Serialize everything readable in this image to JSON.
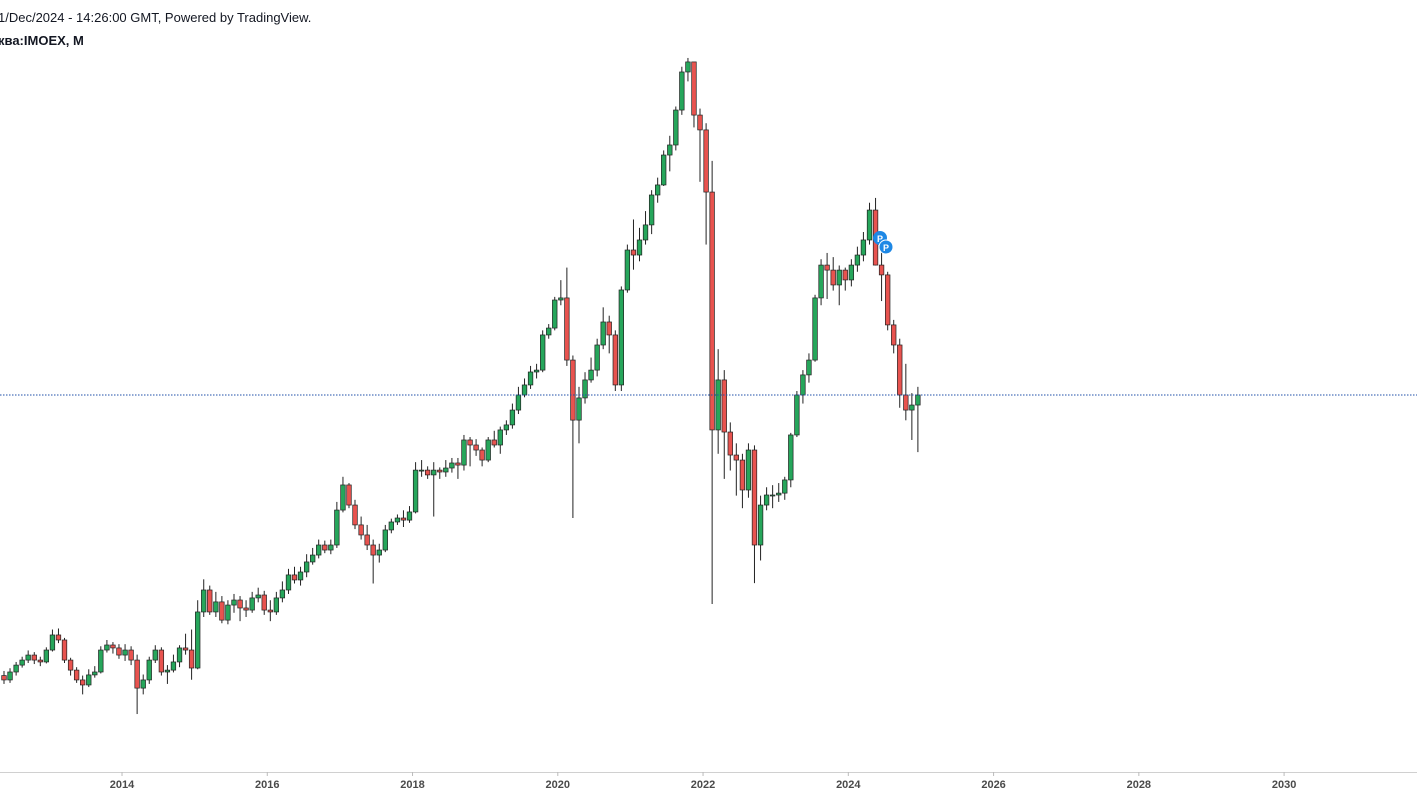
{
  "chart_data": {
    "type": "candlestick",
    "subtitle": "1/Dec/2024 - 14:26:00 GMT, Powered by TradingView.",
    "title": "ква:IMOEX, M",
    "up_color": "#26a65b",
    "down_color": "#e8534f",
    "xlim": [
      2012.32,
      2031.83
    ],
    "ylim": [
      879,
      4569
    ],
    "xticks": [
      2014,
      2016,
      2018,
      2020,
      2022,
      2024,
      2026,
      2028,
      2030
    ],
    "x": [
      2012.375,
      2012.458,
      2012.542,
      2012.625,
      2012.708,
      2012.792,
      2012.875,
      2012.958,
      2013.042,
      2013.125,
      2013.208,
      2013.292,
      2013.375,
      2013.458,
      2013.542,
      2013.625,
      2013.708,
      2013.792,
      2013.875,
      2013.958,
      2014.042,
      2014.125,
      2014.208,
      2014.292,
      2014.375,
      2014.458,
      2014.542,
      2014.625,
      2014.708,
      2014.792,
      2014.875,
      2014.958,
      2015.042,
      2015.125,
      2015.208,
      2015.292,
      2015.375,
      2015.458,
      2015.542,
      2015.625,
      2015.708,
      2015.792,
      2015.875,
      2015.958,
      2016.042,
      2016.125,
      2016.208,
      2016.292,
      2016.375,
      2016.458,
      2016.542,
      2016.625,
      2016.708,
      2016.792,
      2016.875,
      2016.958,
      2017.042,
      2017.125,
      2017.208,
      2017.292,
      2017.375,
      2017.458,
      2017.542,
      2017.625,
      2017.708,
      2017.792,
      2017.875,
      2017.958,
      2018.042,
      2018.125,
      2018.208,
      2018.292,
      2018.375,
      2018.458,
      2018.542,
      2018.625,
      2018.708,
      2018.792,
      2018.875,
      2018.958,
      2019.042,
      2019.125,
      2019.208,
      2019.292,
      2019.375,
      2019.458,
      2019.542,
      2019.625,
      2019.708,
      2019.792,
      2019.875,
      2019.958,
      2020.042,
      2020.125,
      2020.208,
      2020.292,
      2020.375,
      2020.458,
      2020.542,
      2020.625,
      2020.708,
      2020.792,
      2020.875,
      2020.958,
      2021.042,
      2021.125,
      2021.208,
      2021.292,
      2021.375,
      2021.458,
      2021.542,
      2021.625,
      2021.708,
      2021.792,
      2021.875,
      2021.958,
      2022.042,
      2022.125,
      2022.208,
      2022.292,
      2022.375,
      2022.458,
      2022.542,
      2022.625,
      2022.708,
      2022.792,
      2022.875,
      2022.958,
      2023.042,
      2023.125,
      2023.208,
      2023.292,
      2023.375,
      2023.458,
      2023.542,
      2023.625,
      2023.708,
      2023.792,
      2023.875,
      2023.958,
      2024.042,
      2024.125,
      2024.208,
      2024.292,
      2024.375,
      2024.458,
      2024.542,
      2024.625,
      2024.708,
      2024.792,
      2024.875,
      2024.958
    ],
    "open": [
      1340,
      1319,
      1357,
      1390,
      1414,
      1438,
      1414,
      1405,
      1462,
      1534,
      1510,
      1414,
      1366,
      1319,
      1295,
      1343,
      1357,
      1462,
      1486,
      1472,
      1438,
      1462,
      1414,
      1280,
      1319,
      1414,
      1462,
      1357,
      1366,
      1405,
      1472,
      1462,
      1376,
      1644,
      1749,
      1644,
      1692,
      1605,
      1677,
      1701,
      1663,
      1653,
      1711,
      1725,
      1653,
      1644,
      1711,
      1749,
      1821,
      1797,
      1835,
      1883,
      1916,
      1964,
      1940,
      1964,
      2131,
      2251,
      2155,
      2060,
      2012,
      1964,
      1916,
      1940,
      2036,
      2074,
      2093,
      2083,
      2122,
      2322,
      2322,
      2299,
      2322,
      2313,
      2332,
      2356,
      2346,
      2466,
      2442,
      2418,
      2370,
      2466,
      2442,
      2514,
      2538,
      2609,
      2681,
      2729,
      2791,
      2800,
      2968,
      3001,
      3135,
      3145,
      2848,
      2561,
      2667,
      2753,
      2800,
      2920,
      3030,
      2968,
      2729,
      3183,
      3374,
      3350,
      3422,
      3494,
      3637,
      3685,
      3828,
      3876,
      4043,
      4225,
      4273,
      4019,
      3948,
      3651,
      2514,
      2753,
      2504,
      2394,
      2370,
      2227,
      2418,
      1964,
      2155,
      2203,
      2203,
      2212,
      2275,
      2490,
      2681,
      2777,
      2848,
      3145,
      3302,
      3278,
      3207,
      3278,
      3231,
      3302,
      3350,
      3422,
      3565,
      3302,
      3255,
      3016,
      2920,
      2681,
      2609,
      2633
    ],
    "high": [
      1362,
      1375,
      1405,
      1430,
      1460,
      1452,
      1430,
      1475,
      1560,
      1565,
      1520,
      1425,
      1380,
      1340,
      1370,
      1385,
      1480,
      1510,
      1500,
      1490,
      1490,
      1480,
      1440,
      1345,
      1430,
      1485,
      1475,
      1390,
      1440,
      1485,
      1540,
      1560,
      1700,
      1800,
      1770,
      1740,
      1720,
      1700,
      1730,
      1720,
      1700,
      1740,
      1760,
      1745,
      1700,
      1740,
      1790,
      1850,
      1860,
      1860,
      1920,
      1950,
      1990,
      1985,
      1990,
      2170,
      2290,
      2260,
      2180,
      2100,
      2060,
      1990,
      1970,
      2060,
      2090,
      2110,
      2130,
      2150,
      2360,
      2370,
      2340,
      2360,
      2335,
      2370,
      2380,
      2380,
      2490,
      2480,
      2470,
      2430,
      2480,
      2510,
      2530,
      2560,
      2640,
      2720,
      2760,
      2820,
      2830,
      2990,
      3020,
      3150,
      3230,
      3290,
      2870,
      2720,
      2790,
      2860,
      2950,
      3100,
      3060,
      2990,
      3200,
      3400,
      3520,
      3480,
      3560,
      3660,
      3720,
      3850,
      3920,
      4060,
      4250,
      4292,
      4260,
      4050,
      3980,
      3800,
      2900,
      2800,
      2550,
      2450,
      2400,
      2450,
      2440,
      2200,
      2240,
      2250,
      2260,
      2290,
      2500,
      2700,
      2800,
      2880,
      3160,
      3330,
      3360,
      3340,
      3300,
      3290,
      3330,
      3390,
      3460,
      3600,
      3623,
      3370,
      3270,
      3040,
      2950,
      2830,
      2690,
      2720
    ],
    "low": [
      1300,
      1305,
      1340,
      1378,
      1400,
      1395,
      1385,
      1398,
      1455,
      1495,
      1400,
      1340,
      1305,
      1250,
      1285,
      1330,
      1350,
      1450,
      1445,
      1420,
      1410,
      1390,
      1156,
      1250,
      1300,
      1400,
      1340,
      1300,
      1355,
      1380,
      1440,
      1320,
      1370,
      1620,
      1630,
      1620,
      1590,
      1585,
      1640,
      1600,
      1620,
      1640,
      1690,
      1630,
      1600,
      1630,
      1690,
      1730,
      1780,
      1770,
      1810,
      1870,
      1900,
      1925,
      1920,
      1950,
      2120,
      2140,
      2040,
      1990,
      1940,
      1780,
      1880,
      1930,
      2020,
      2060,
      2050,
      2070,
      2115,
      2290,
      2280,
      2100,
      2280,
      2290,
      2310,
      2280,
      2320,
      2340,
      2390,
      2340,
      2360,
      2430,
      2400,
      2490,
      2520,
      2590,
      2670,
      2710,
      2760,
      2790,
      2950,
      2990,
      3110,
      2820,
      2093,
      2450,
      2640,
      2740,
      2770,
      2900,
      2880,
      2700,
      2700,
      3170,
      3280,
      3320,
      3400,
      3450,
      3600,
      3680,
      3750,
      3850,
      4020,
      4180,
      3960,
      3700,
      3400,
      1682,
      2400,
      2280,
      2320,
      2200,
      2140,
      2190,
      1782,
      1890,
      2130,
      2140,
      2170,
      2180,
      2240,
      2480,
      2640,
      2740,
      2840,
      3110,
      3140,
      3180,
      3110,
      3180,
      3200,
      3270,
      3320,
      3400,
      3300,
      3130,
      2990,
      2880,
      2620,
      2560,
      2466,
      2408
    ],
    "close": [
      1319,
      1357,
      1390,
      1414,
      1438,
      1414,
      1405,
      1462,
      1534,
      1510,
      1414,
      1366,
      1319,
      1295,
      1343,
      1357,
      1462,
      1486,
      1472,
      1438,
      1462,
      1414,
      1280,
      1319,
      1414,
      1462,
      1357,
      1366,
      1405,
      1472,
      1462,
      1376,
      1644,
      1749,
      1644,
      1692,
      1605,
      1677,
      1701,
      1663,
      1653,
      1711,
      1725,
      1653,
      1644,
      1711,
      1749,
      1821,
      1797,
      1835,
      1883,
      1916,
      1964,
      1940,
      1964,
      2131,
      2251,
      2155,
      2060,
      2012,
      1964,
      1916,
      1940,
      2036,
      2074,
      2093,
      2083,
      2122,
      2322,
      2322,
      2299,
      2322,
      2313,
      2332,
      2356,
      2346,
      2466,
      2442,
      2418,
      2370,
      2466,
      2442,
      2514,
      2538,
      2609,
      2681,
      2729,
      2791,
      2800,
      2968,
      3001,
      3135,
      3145,
      2848,
      2561,
      2667,
      2753,
      2800,
      2920,
      3030,
      2968,
      2729,
      3183,
      3374,
      3350,
      3422,
      3494,
      3637,
      3685,
      3828,
      3876,
      4043,
      4225,
      4273,
      4019,
      3948,
      3651,
      2514,
      2753,
      2504,
      2394,
      2370,
      2227,
      2418,
      1964,
      2155,
      2203,
      2203,
      2212,
      2275,
      2490,
      2681,
      2777,
      2848,
      3145,
      3302,
      3278,
      3207,
      3278,
      3231,
      3302,
      3350,
      3422,
      3565,
      3302,
      3255,
      3016,
      2920,
      2681,
      2609,
      2633,
      2681
    ]
  }
}
